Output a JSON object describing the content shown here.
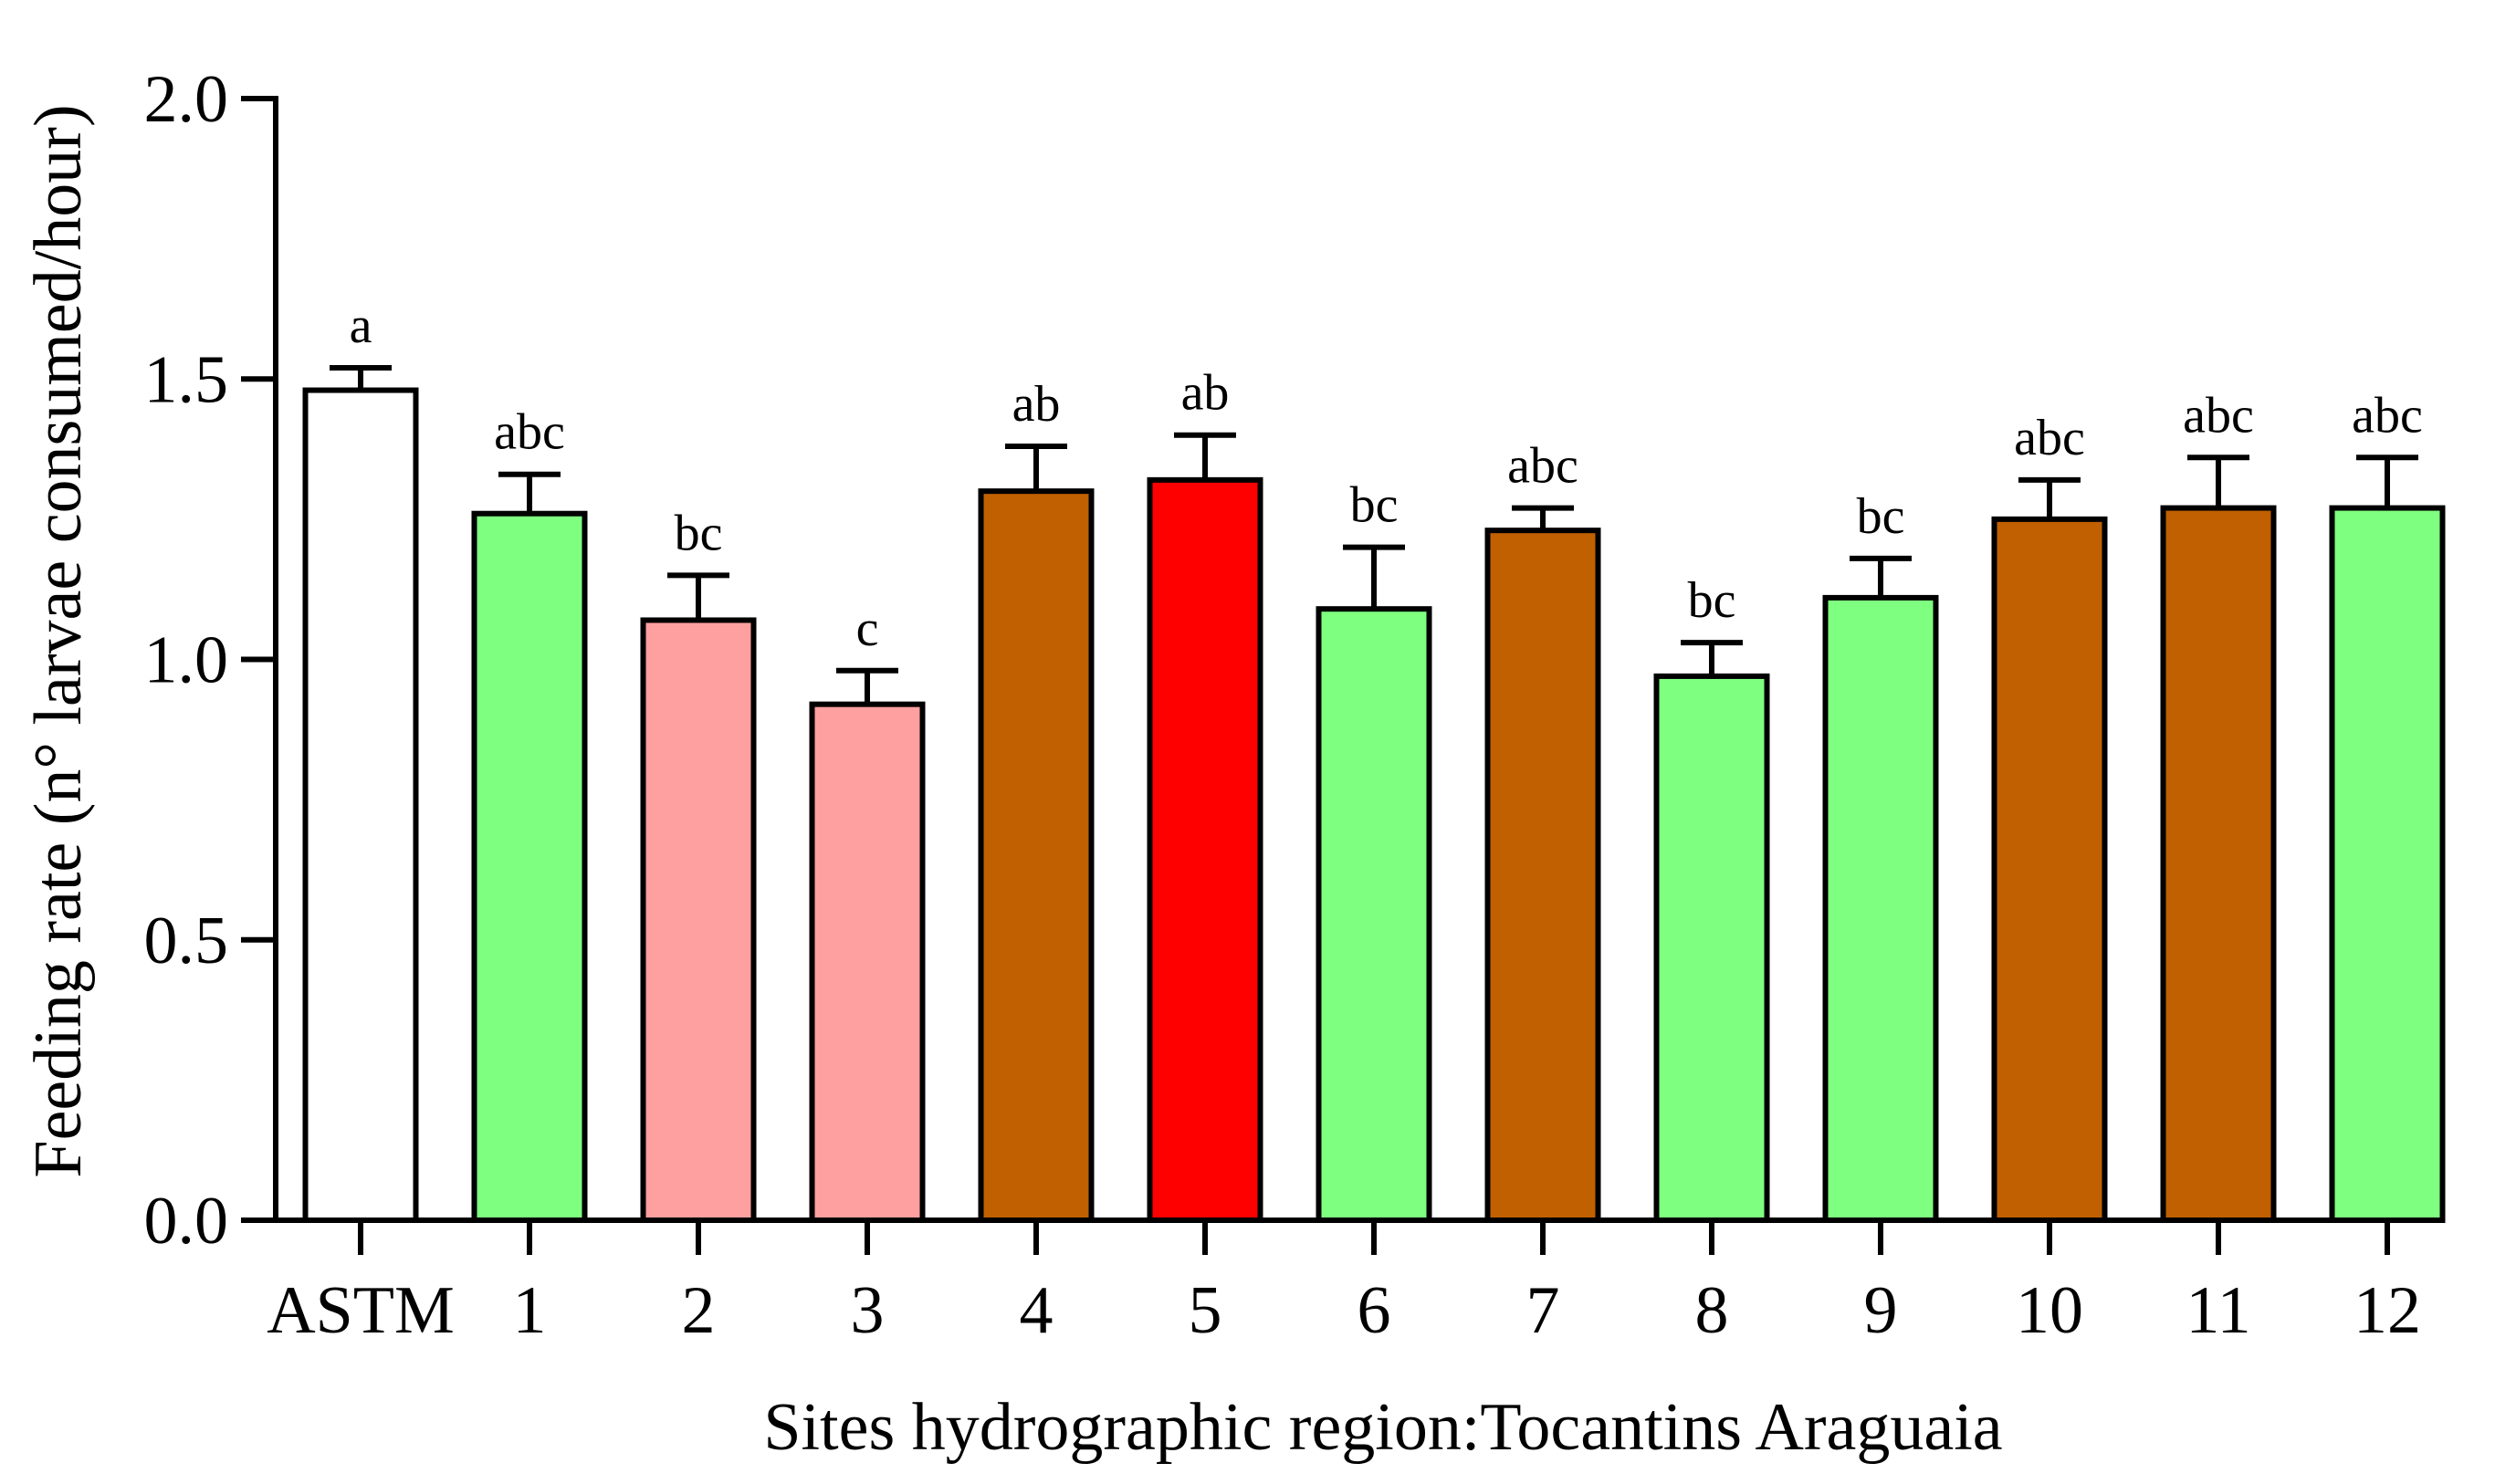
{
  "chart_data": {
    "type": "bar",
    "title": "",
    "xlabel": "Sites hydrographic region:Tocantins Araguaia",
    "ylabel": "Feeding rate (n° larvae consumed/hour)",
    "ylim": [
      0.0,
      2.0
    ],
    "yticks": [
      0.0,
      0.5,
      1.0,
      1.5,
      2.0
    ],
    "ytick_labels": [
      "0.0",
      "0.5",
      "1.0",
      "1.5",
      "2.0"
    ],
    "grid": false,
    "categories": [
      "ASTM",
      "1",
      "2",
      "3",
      "4",
      "5",
      "6",
      "7",
      "8",
      "9",
      "10",
      "11",
      "12"
    ],
    "values": [
      1.48,
      1.26,
      1.07,
      0.92,
      1.3,
      1.32,
      1.09,
      1.23,
      0.97,
      1.11,
      1.25,
      1.27,
      1.27
    ],
    "errors": [
      0.04,
      0.07,
      0.08,
      0.06,
      0.08,
      0.08,
      0.11,
      0.04,
      0.06,
      0.07,
      0.07,
      0.09,
      0.09
    ],
    "significance_labels": [
      "a",
      "abc",
      "bc",
      "c",
      "ab",
      "ab",
      "bc",
      "abc",
      "bc",
      "bc",
      "abc",
      "abc",
      "abc"
    ],
    "bar_colors": [
      "#FFFFFF",
      "#7FFF7F",
      "#FFA0A0",
      "#FFA0A0",
      "#C06000",
      "#FF0000",
      "#7FFF7F",
      "#C06000",
      "#7FFF7F",
      "#7FFF7F",
      "#C06000",
      "#C06000",
      "#7FFF7F"
    ]
  }
}
